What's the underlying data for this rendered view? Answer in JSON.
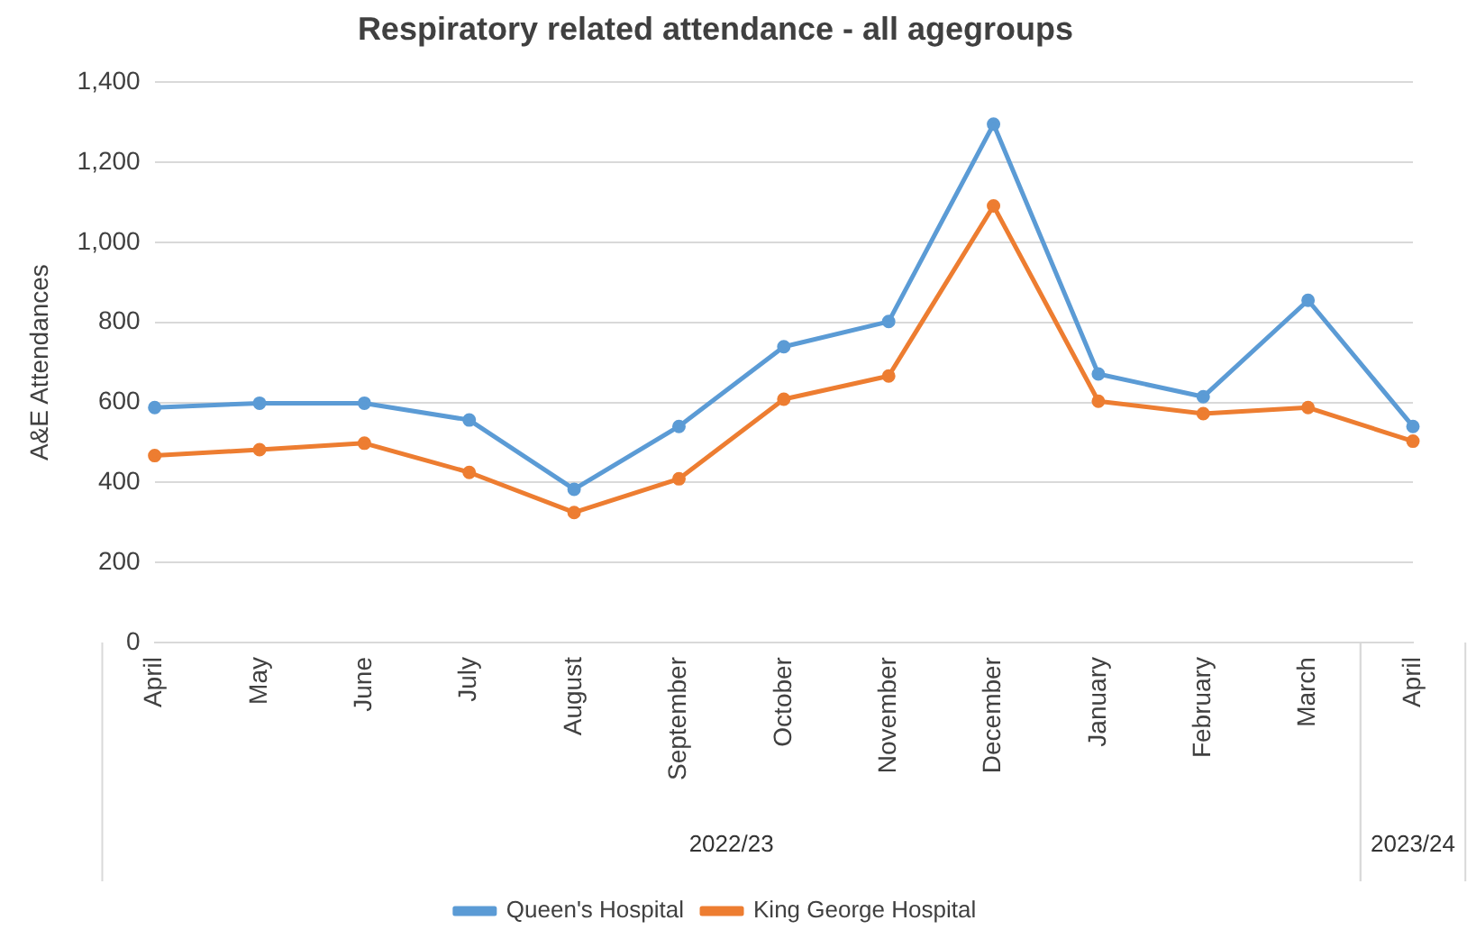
{
  "chart_data": {
    "type": "line",
    "title": "Respiratory related attendance - all agegroups",
    "ylabel": "A&E Attendances",
    "categories": [
      "April",
      "May",
      "June",
      "July",
      "August",
      "September",
      "October",
      "November",
      "December",
      "January",
      "February",
      "March",
      "April"
    ],
    "series": [
      {
        "name": "Queen's Hospital",
        "color": "#5b9bd5",
        "values": [
          587,
          598,
          598,
          556,
          383,
          540,
          739,
          802,
          1295,
          671,
          614,
          855,
          540
        ]
      },
      {
        "name": "King George Hospital",
        "color": "#ed7d31",
        "values": [
          467,
          482,
          498,
          425,
          325,
          409,
          608,
          666,
          1091,
          603,
          572,
          587,
          503
        ]
      }
    ],
    "ylim": [
      0,
      1400
    ],
    "yticks": [
      0,
      200,
      400,
      600,
      800,
      {
        "value": 1000,
        "label": "1,000"
      },
      {
        "value": 1200,
        "label": "1,200"
      },
      {
        "value": 1400,
        "label": "1,400"
      }
    ],
    "grid": "y",
    "legend": "bottom",
    "marker": "circle",
    "annotations": [
      "2022/23",
      "2023/24"
    ]
  }
}
